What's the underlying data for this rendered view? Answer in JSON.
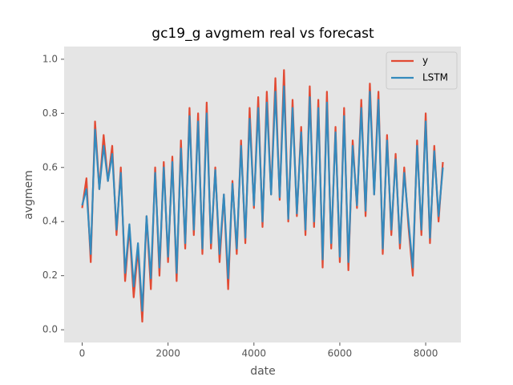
{
  "chart_data": {
    "type": "line",
    "title": "gc19_g avgmem real vs forecast",
    "xlabel": "date",
    "ylabel": "avgmem",
    "x": [
      0,
      100,
      200,
      300,
      400,
      500,
      600,
      700,
      800,
      900,
      1000,
      1100,
      1200,
      1300,
      1400,
      1500,
      1600,
      1700,
      1800,
      1900,
      2000,
      2100,
      2200,
      2300,
      2400,
      2500,
      2600,
      2700,
      2800,
      2900,
      3000,
      3100,
      3200,
      3300,
      3400,
      3500,
      3600,
      3700,
      3800,
      3900,
      4000,
      4100,
      4200,
      4300,
      4400,
      4500,
      4600,
      4700,
      4800,
      4900,
      5000,
      5100,
      5200,
      5300,
      5400,
      5500,
      5600,
      5700,
      5800,
      5900,
      6000,
      6100,
      6200,
      6300,
      6400,
      6500,
      6600,
      6700,
      6800,
      6900,
      7000,
      7100,
      7200,
      7300,
      7400,
      7500,
      7600,
      7700,
      7800,
      7900,
      8000,
      8100,
      8200,
      8300,
      8400
    ],
    "series": [
      {
        "name": "y",
        "color": "#E24A33",
        "values": [
          0.45,
          0.56,
          0.25,
          0.77,
          0.52,
          0.72,
          0.55,
          0.68,
          0.35,
          0.6,
          0.18,
          0.38,
          0.12,
          0.3,
          0.03,
          0.42,
          0.15,
          0.6,
          0.2,
          0.62,
          0.25,
          0.64,
          0.18,
          0.7,
          0.3,
          0.82,
          0.35,
          0.8,
          0.28,
          0.84,
          0.3,
          0.6,
          0.25,
          0.5,
          0.15,
          0.55,
          0.28,
          0.7,
          0.32,
          0.82,
          0.45,
          0.86,
          0.38,
          0.88,
          0.5,
          0.93,
          0.48,
          0.96,
          0.4,
          0.85,
          0.42,
          0.75,
          0.35,
          0.9,
          0.38,
          0.85,
          0.23,
          0.88,
          0.3,
          0.75,
          0.25,
          0.82,
          0.22,
          0.7,
          0.45,
          0.85,
          0.42,
          0.91,
          0.5,
          0.88,
          0.28,
          0.72,
          0.35,
          0.65,
          0.3,
          0.6,
          0.38,
          0.2,
          0.7,
          0.35,
          0.8,
          0.32,
          0.68,
          0.4,
          0.62
        ]
      },
      {
        "name": "LSTM",
        "color": "#348ABD",
        "values": [
          0.46,
          0.52,
          0.28,
          0.74,
          0.52,
          0.68,
          0.55,
          0.65,
          0.37,
          0.58,
          0.21,
          0.39,
          0.16,
          0.32,
          0.07,
          0.42,
          0.19,
          0.58,
          0.23,
          0.6,
          0.27,
          0.62,
          0.21,
          0.67,
          0.32,
          0.79,
          0.37,
          0.77,
          0.3,
          0.8,
          0.32,
          0.59,
          0.28,
          0.5,
          0.19,
          0.54,
          0.3,
          0.68,
          0.34,
          0.78,
          0.46,
          0.82,
          0.4,
          0.84,
          0.5,
          0.88,
          0.49,
          0.9,
          0.41,
          0.82,
          0.43,
          0.73,
          0.37,
          0.86,
          0.4,
          0.82,
          0.26,
          0.84,
          0.32,
          0.73,
          0.27,
          0.79,
          0.25,
          0.68,
          0.46,
          0.82,
          0.44,
          0.88,
          0.5,
          0.85,
          0.3,
          0.7,
          0.37,
          0.63,
          0.32,
          0.58,
          0.4,
          0.23,
          0.68,
          0.37,
          0.77,
          0.34,
          0.66,
          0.42,
          0.6
        ]
      }
    ],
    "xlim": [
      -420,
      8820
    ],
    "xticks": [
      0,
      2000,
      4000,
      6000,
      8000
    ],
    "ylim": [
      -0.047,
      1.047
    ],
    "yticks": [
      {
        "value": 0,
        "label": "0.0"
      },
      0.2,
      0.4,
      0.6,
      0.8,
      {
        "value": 1,
        "label": "1.0"
      }
    ],
    "grid": false,
    "legend": "upper right"
  }
}
